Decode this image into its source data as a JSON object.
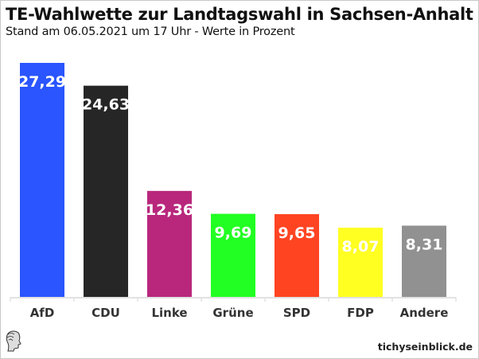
{
  "header": {
    "title": "TE-Wahlwette zur Landtagswahl in Sachsen-Anhalt",
    "subtitle": "Stand am 06.05.2021 um 17 Uhr - Werte in Prozent"
  },
  "footer": {
    "brand": "tichyseinblick.de",
    "logo_icon": "classical-head-logo-icon"
  },
  "chart_data": {
    "type": "bar",
    "title": "TE-Wahlwette zur Landtagswahl in Sachsen-Anhalt",
    "subtitle": "Stand am 06.05.2021 um 17 Uhr - Werte in Prozent",
    "xlabel": "",
    "ylabel": "",
    "categories": [
      "AfD",
      "CDU",
      "Linke",
      "Grüne",
      "SPD",
      "FDP",
      "Andere"
    ],
    "values": [
      27.29,
      24.63,
      12.36,
      9.69,
      9.65,
      8.07,
      8.31
    ],
    "labels": [
      "27,29",
      "24,63",
      "12,36",
      "9,69",
      "9,65",
      "8,07",
      "8,31"
    ],
    "colors": [
      "#2a55ff",
      "#262626",
      "#b8277c",
      "#22ff22",
      "#ff4422",
      "#ffff22",
      "#919191"
    ],
    "ylim": [
      0,
      27.29
    ],
    "grid": false,
    "legend": "none"
  }
}
